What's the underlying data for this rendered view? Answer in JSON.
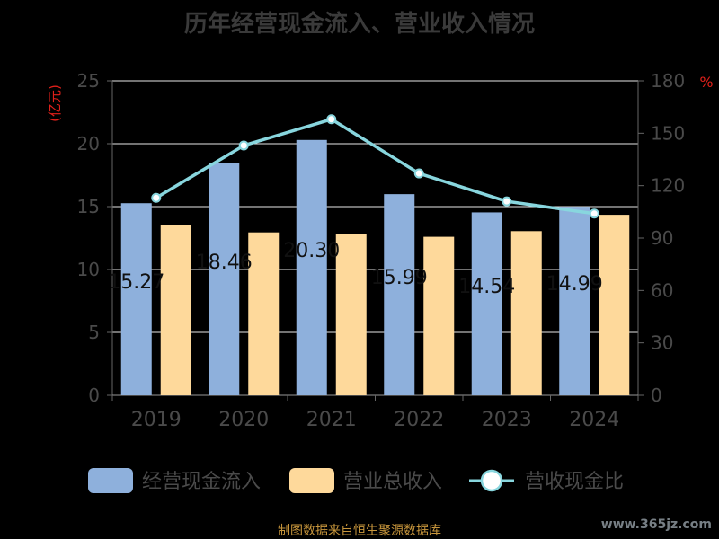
{
  "title": "历年经营现金流入、营业收入情况",
  "footer": "制图数据来自恒生聚源数据库",
  "watermark": "www.365jz.com",
  "chart_data": {
    "type": "bar",
    "categories": [
      "2019",
      "2020",
      "2021",
      "2022",
      "2023",
      "2024"
    ],
    "series": [
      {
        "name": "经营现金流入",
        "type": "bar",
        "axis": "left",
        "color": "#8eb0dc",
        "values": [
          15.27,
          18.46,
          20.3,
          15.99,
          14.54,
          14.99
        ],
        "labels": [
          "15.27",
          "18.46",
          "20.30",
          "15.99",
          "14.54",
          "14.99"
        ]
      },
      {
        "name": "营业总收入",
        "type": "bar",
        "axis": "left",
        "color": "#fed99b",
        "values": [
          13.5,
          12.95,
          12.85,
          12.6,
          13.05,
          14.35
        ]
      },
      {
        "name": "营收现金比",
        "type": "line",
        "axis": "right",
        "color": "#88d6de",
        "values": [
          113,
          143,
          158,
          127,
          111,
          104
        ]
      }
    ],
    "ylabel_left": "(亿元)",
    "ylabel_right": "%",
    "ylim_left": [
      0,
      25
    ],
    "ylim_right": [
      0,
      180
    ],
    "yticks_left": [
      0,
      5,
      10,
      15,
      20,
      25
    ],
    "yticks_right": [
      0,
      30,
      60,
      90,
      120,
      150,
      180
    ],
    "grid": true,
    "legend_position": "bottom"
  }
}
